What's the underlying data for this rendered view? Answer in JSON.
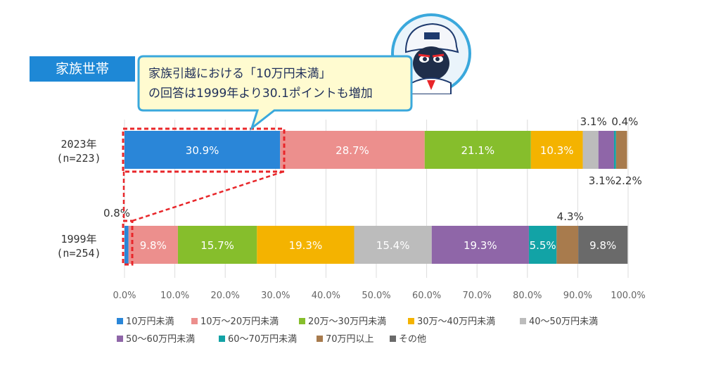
{
  "section_label": "家族世帯",
  "callout": {
    "line1": "家族引越における「10万円未満」",
    "line2": "の回答は1999年より30.1ポイントも増加"
  },
  "colors": {
    "section_bg": "#1e88d6",
    "callout_bg": "#fffbd0",
    "callout_border": "#3aa8dc",
    "highlight_dash": "#e8262a"
  },
  "chart_data": {
    "type": "bar",
    "orientation": "horizontal",
    "stacked": true,
    "xlim": [
      0,
      100
    ],
    "xticks": [
      "0.0%",
      "10.0%",
      "20.0%",
      "30.0%",
      "40.0%",
      "50.0%",
      "60.0%",
      "70.0%",
      "80.0%",
      "90.0%",
      "100.0%"
    ],
    "grid": true,
    "legend_position": "bottom",
    "categories": [
      {
        "label1": "2023年",
        "label2": "(n=223)"
      },
      {
        "label1": "1999年",
        "label2": "(n=254)"
      }
    ],
    "series": [
      {
        "name": "10万円未満",
        "color": "#2a86d8",
        "values": [
          30.9,
          0.8
        ]
      },
      {
        "name": "10万～20万円未満",
        "color": "#ec8f8d",
        "values": [
          28.7,
          9.8
        ]
      },
      {
        "name": "20万～30万円未満",
        "color": "#86be2c",
        "values": [
          21.1,
          15.7
        ]
      },
      {
        "name": "30万～40万円未満",
        "color": "#f4b300",
        "values": [
          10.3,
          19.3
        ]
      },
      {
        "name": "40～50万円未満",
        "color": "#bcbcbc",
        "values": [
          3.1,
          15.4
        ]
      },
      {
        "name": "50～60万円未満",
        "color": "#8f66a8",
        "values": [
          3.1,
          19.3
        ]
      },
      {
        "name": "60～70万円未満",
        "color": "#12a3a6",
        "values": [
          0.4,
          5.5
        ]
      },
      {
        "name": "70万円以上",
        "color": "#a87b4d",
        "values": [
          2.2,
          4.3
        ]
      },
      {
        "name": "その他",
        "color": "#6a6a6a",
        "values": [
          0,
          9.8
        ]
      }
    ],
    "data_labels": [
      [
        "30.9%",
        "28.7%",
        "21.1%",
        "10.3%",
        "3.1%",
        "3.1%",
        "0.4%",
        "2.2%",
        ""
      ],
      [
        "0.8%",
        "9.8%",
        "15.7%",
        "19.3%",
        "15.4%",
        "19.3%",
        "5.5%",
        "4.3%",
        "9.8%"
      ]
    ]
  }
}
